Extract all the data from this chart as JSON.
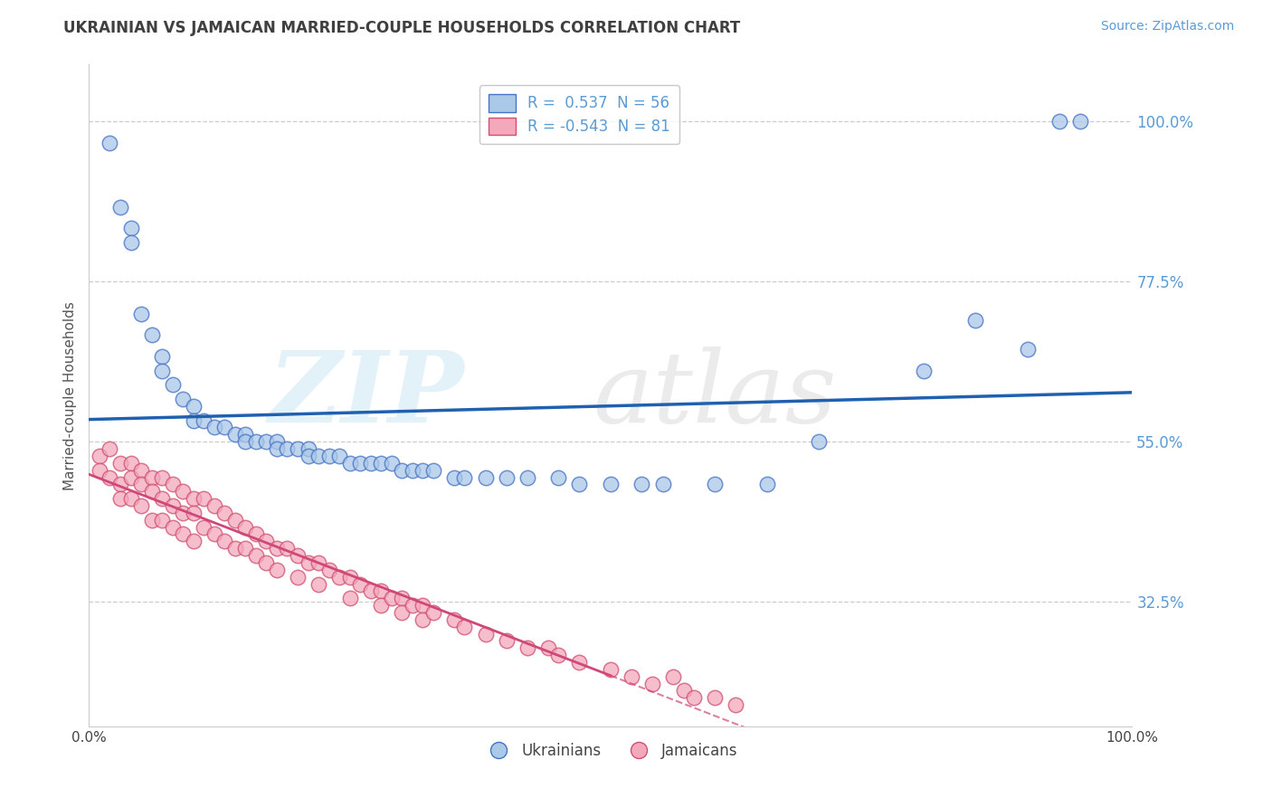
{
  "title": "UKRAINIAN VS JAMAICAN MARRIED-COUPLE HOUSEHOLDS CORRELATION CHART",
  "source": "Source: ZipAtlas.com",
  "ylabel": "Married-couple Households",
  "xlim": [
    0,
    100
  ],
  "ylim": [
    15,
    108
  ],
  "yticks": [
    32.5,
    55.0,
    77.5,
    100.0
  ],
  "r_ukrainian": 0.537,
  "n_ukrainian": 56,
  "r_jamaican": -0.543,
  "n_jamaican": 81,
  "ukrainian_fill": "#aac8e8",
  "ukrainian_edge": "#4472c4",
  "jamaican_fill": "#f4a8bc",
  "jamaican_edge": "#d05070",
  "line_ukrainian": "#2060b0",
  "line_jamaican": "#d04878",
  "grid_color": "#cccccc",
  "bg_color": "#ffffff",
  "title_color": "#404040",
  "source_color": "#5b9bd5",
  "ytick_color": "#5b9bd5",
  "legend_color": "#5b9bd5",
  "scatter_ukrainian": [
    [
      2,
      97
    ],
    [
      3,
      88
    ],
    [
      4,
      85
    ],
    [
      4,
      83
    ],
    [
      5,
      73
    ],
    [
      6,
      70
    ],
    [
      7,
      67
    ],
    [
      7,
      65
    ],
    [
      8,
      63
    ],
    [
      9,
      61
    ],
    [
      10,
      60
    ],
    [
      10,
      58
    ],
    [
      11,
      58
    ],
    [
      12,
      57
    ],
    [
      13,
      57
    ],
    [
      14,
      56
    ],
    [
      15,
      56
    ],
    [
      15,
      55
    ],
    [
      16,
      55
    ],
    [
      17,
      55
    ],
    [
      18,
      55
    ],
    [
      18,
      54
    ],
    [
      19,
      54
    ],
    [
      20,
      54
    ],
    [
      21,
      54
    ],
    [
      21,
      53
    ],
    [
      22,
      53
    ],
    [
      23,
      53
    ],
    [
      24,
      53
    ],
    [
      25,
      52
    ],
    [
      26,
      52
    ],
    [
      27,
      52
    ],
    [
      28,
      52
    ],
    [
      29,
      52
    ],
    [
      30,
      51
    ],
    [
      31,
      51
    ],
    [
      32,
      51
    ],
    [
      33,
      51
    ],
    [
      35,
      50
    ],
    [
      36,
      50
    ],
    [
      38,
      50
    ],
    [
      40,
      50
    ],
    [
      42,
      50
    ],
    [
      45,
      50
    ],
    [
      47,
      49
    ],
    [
      50,
      49
    ],
    [
      53,
      49
    ],
    [
      55,
      49
    ],
    [
      60,
      49
    ],
    [
      65,
      49
    ],
    [
      70,
      55
    ],
    [
      80,
      65
    ],
    [
      85,
      72
    ],
    [
      90,
      68
    ],
    [
      93,
      100
    ],
    [
      95,
      100
    ]
  ],
  "scatter_jamaican": [
    [
      1,
      53
    ],
    [
      1,
      51
    ],
    [
      2,
      54
    ],
    [
      2,
      50
    ],
    [
      3,
      52
    ],
    [
      3,
      49
    ],
    [
      3,
      47
    ],
    [
      4,
      52
    ],
    [
      4,
      50
    ],
    [
      4,
      47
    ],
    [
      5,
      51
    ],
    [
      5,
      49
    ],
    [
      5,
      46
    ],
    [
      6,
      50
    ],
    [
      6,
      48
    ],
    [
      6,
      44
    ],
    [
      7,
      50
    ],
    [
      7,
      47
    ],
    [
      7,
      44
    ],
    [
      8,
      49
    ],
    [
      8,
      46
    ],
    [
      8,
      43
    ],
    [
      9,
      48
    ],
    [
      9,
      45
    ],
    [
      9,
      42
    ],
    [
      10,
      47
    ],
    [
      10,
      45
    ],
    [
      10,
      41
    ],
    [
      11,
      47
    ],
    [
      11,
      43
    ],
    [
      12,
      46
    ],
    [
      12,
      42
    ],
    [
      13,
      45
    ],
    [
      13,
      41
    ],
    [
      14,
      44
    ],
    [
      14,
      40
    ],
    [
      15,
      43
    ],
    [
      15,
      40
    ],
    [
      16,
      42
    ],
    [
      16,
      39
    ],
    [
      17,
      41
    ],
    [
      17,
      38
    ],
    [
      18,
      40
    ],
    [
      18,
      37
    ],
    [
      19,
      40
    ],
    [
      20,
      39
    ],
    [
      20,
      36
    ],
    [
      21,
      38
    ],
    [
      22,
      38
    ],
    [
      22,
      35
    ],
    [
      23,
      37
    ],
    [
      24,
      36
    ],
    [
      25,
      36
    ],
    [
      25,
      33
    ],
    [
      26,
      35
    ],
    [
      27,
      34
    ],
    [
      28,
      34
    ],
    [
      28,
      32
    ],
    [
      29,
      33
    ],
    [
      30,
      33
    ],
    [
      30,
      31
    ],
    [
      31,
      32
    ],
    [
      32,
      32
    ],
    [
      32,
      30
    ],
    [
      33,
      31
    ],
    [
      35,
      30
    ],
    [
      36,
      29
    ],
    [
      38,
      28
    ],
    [
      40,
      27
    ],
    [
      42,
      26
    ],
    [
      44,
      26
    ],
    [
      45,
      25
    ],
    [
      47,
      24
    ],
    [
      50,
      23
    ],
    [
      52,
      22
    ],
    [
      54,
      21
    ],
    [
      56,
      22
    ],
    [
      57,
      20
    ],
    [
      58,
      19
    ],
    [
      60,
      19
    ],
    [
      62,
      18
    ]
  ],
  "watermark_zip": "ZIP",
  "watermark_atlas": "atlas",
  "bottom_labels": [
    "Ukrainians",
    "Jamaicans"
  ]
}
